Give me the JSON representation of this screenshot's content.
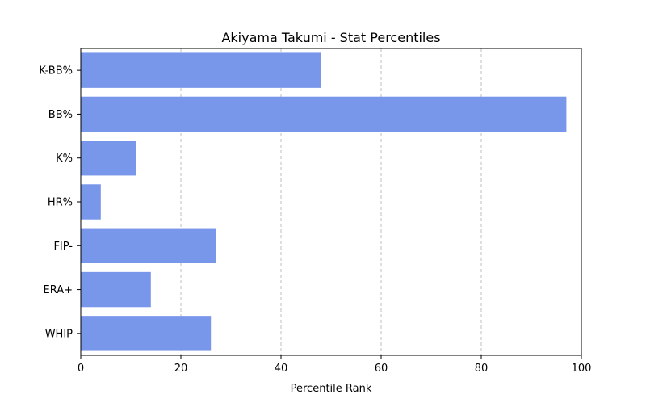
{
  "chart_data": {
    "type": "bar",
    "orientation": "horizontal",
    "title": "Akiyama Takumi - Stat Percentiles",
    "xlabel": "Percentile Rank",
    "ylabel": "",
    "categories": [
      "K-BB%",
      "BB%",
      "K%",
      "HR%",
      "FIP-",
      "ERA+",
      "WHIP"
    ],
    "values": [
      48,
      97,
      11,
      4,
      27,
      14,
      26
    ],
    "xlim": [
      0,
      100
    ],
    "xticks": [
      0,
      20,
      40,
      60,
      80,
      100
    ],
    "grid": "x-dashed",
    "bar_color": "#7896EA"
  }
}
